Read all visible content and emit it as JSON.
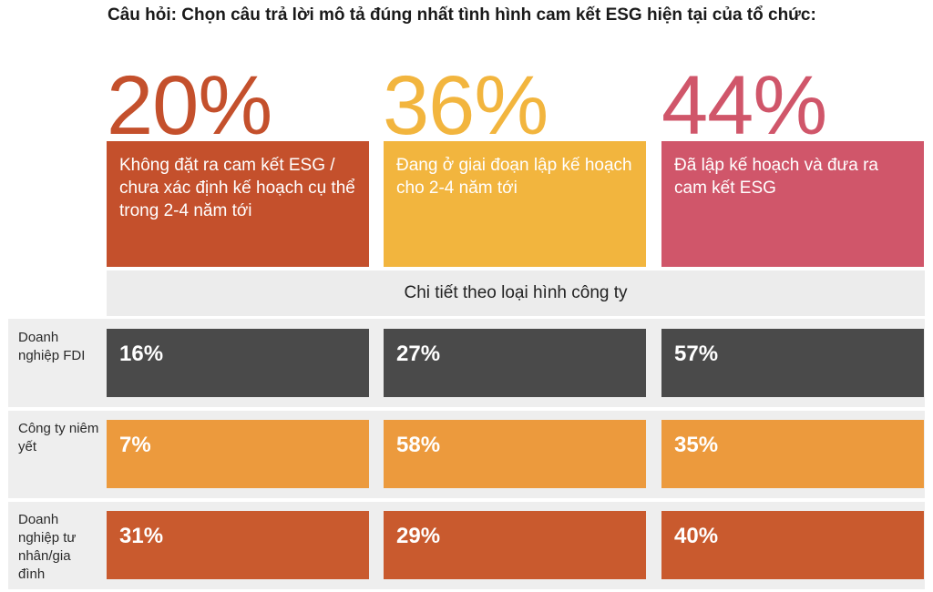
{
  "question": "Câu hỏi: Chọn câu trả lời mô tả đúng nhất tình hình cam kết ESG hiện tại của tổ chức:",
  "subheader": "Chi tiết theo loại hình công ty",
  "colors": {
    "overall": [
      "#c4502c",
      "#f2b53e",
      "#d0566a"
    ],
    "rows": [
      "#4a4a4a",
      "#ec9a3d",
      "#c95a2e"
    ]
  },
  "chart_data": {
    "type": "table",
    "categories": [
      "Không đặt ra cam kết ESG / chưa xác định kế hoạch cụ thể trong 2-4 năm tới",
      "Đang ở giai đoạn lập kế hoạch cho 2-4 năm tới",
      "Đã lập kế hoạch và đưa ra cam kết ESG"
    ],
    "overall": {
      "values": [
        20,
        36,
        44
      ],
      "labels": [
        "20%",
        "36%",
        "44%"
      ]
    },
    "series": [
      {
        "name": "Doanh nghiệp FDI",
        "values": [
          16,
          27,
          57
        ],
        "labels": [
          "16%",
          "27%",
          "57%"
        ]
      },
      {
        "name": "Công ty niêm yết",
        "values": [
          7,
          58,
          35
        ],
        "labels": [
          "7%",
          "58%",
          "35%"
        ]
      },
      {
        "name": "Doanh nghiệp tư nhân/gia đình",
        "values": [
          31,
          29,
          40
        ],
        "labels": [
          "31%",
          "29%",
          "40%"
        ]
      }
    ]
  }
}
